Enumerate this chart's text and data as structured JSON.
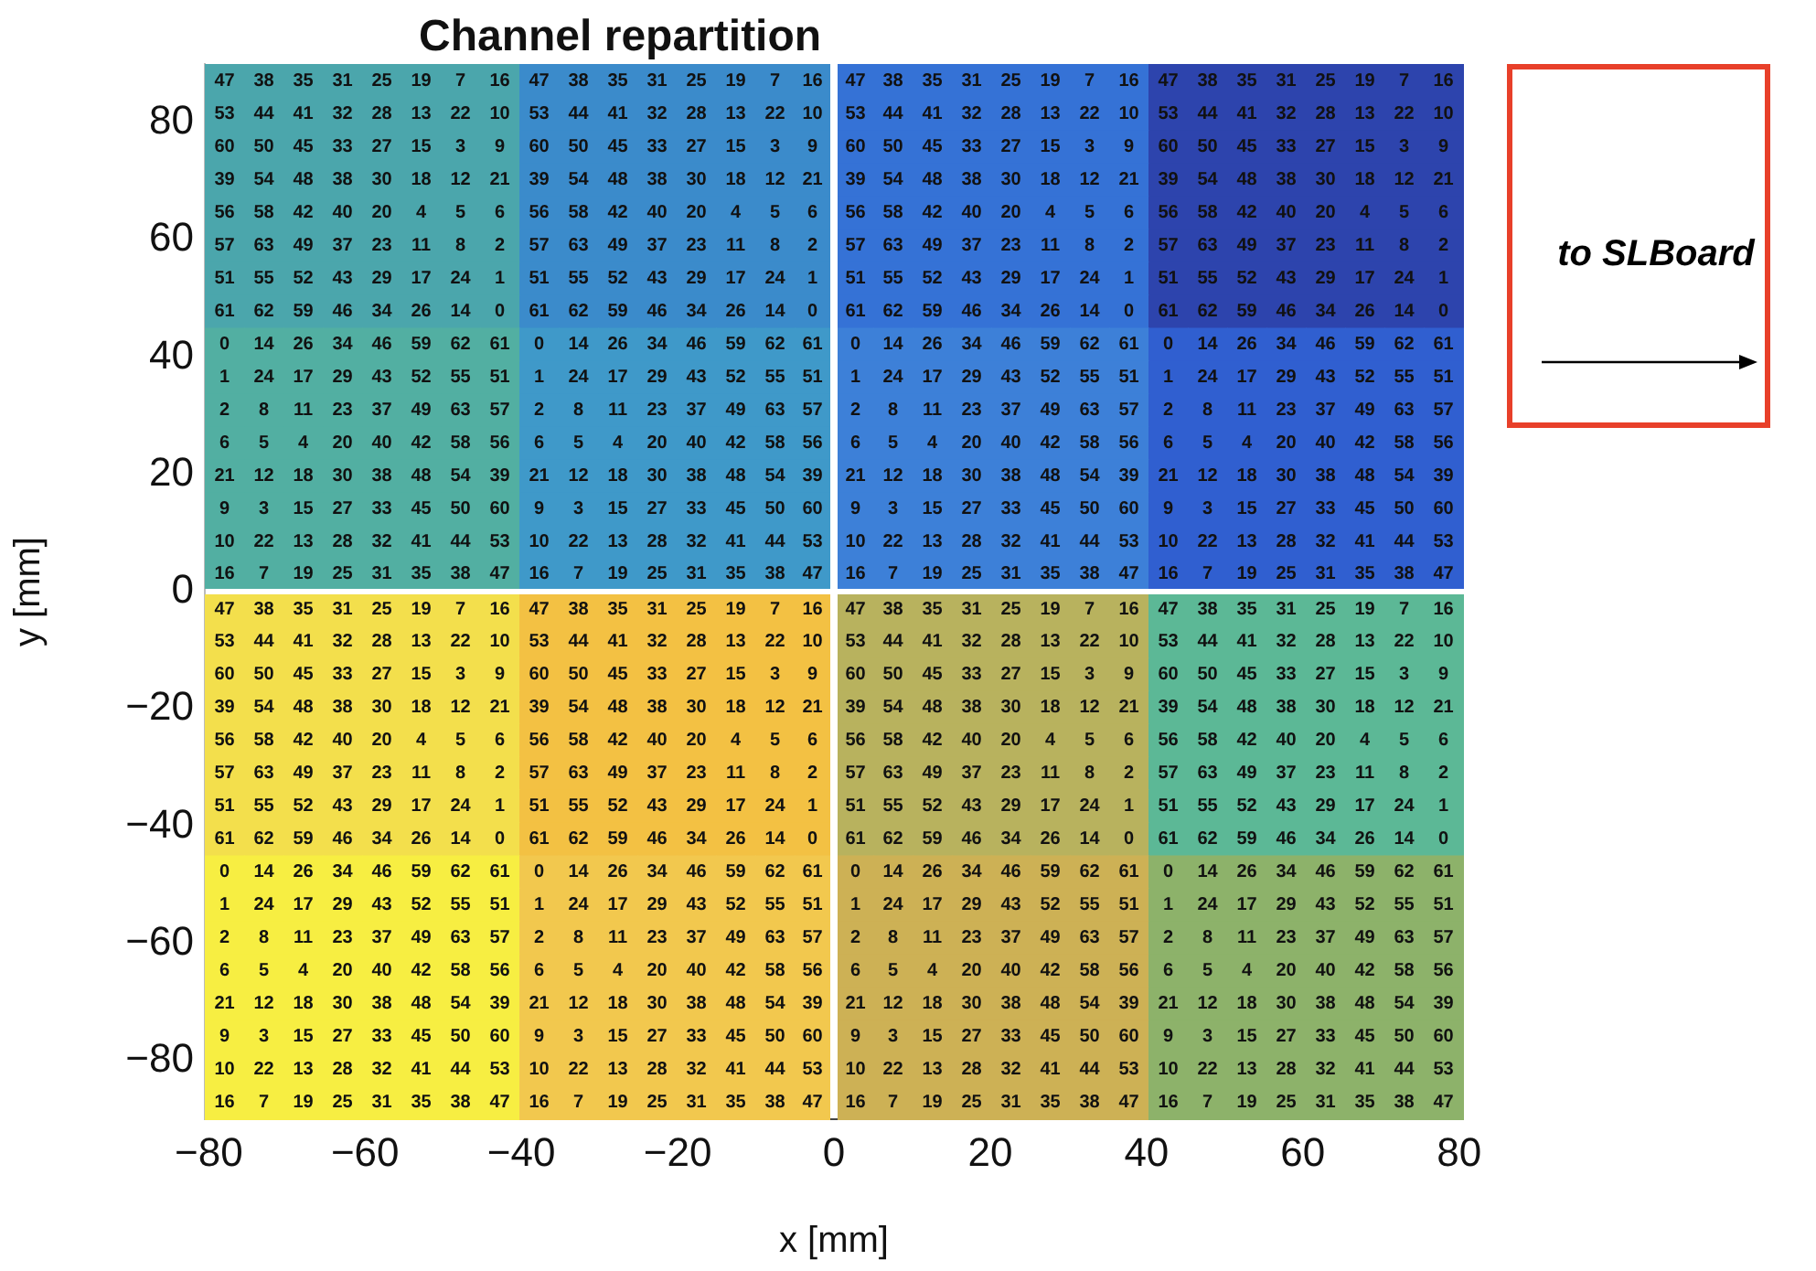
{
  "chart_data": {
    "type": "heatmap",
    "title": "Channel repartition",
    "xlabel": "x [mm]",
    "ylabel": "y [mm]",
    "annotations": [
      "to SLBoard"
    ],
    "xlim": [
      -80.5,
      80.5
    ],
    "ylim": [
      -90,
      90
    ],
    "xticks": [
      {
        "value": -80,
        "label": "−80"
      },
      {
        "value": -60,
        "label": "−60"
      },
      {
        "value": -40,
        "label": "−40"
      },
      {
        "value": -20,
        "label": "−20"
      },
      0,
      20,
      40,
      60,
      80
    ],
    "yticks": [
      {
        "value": -80,
        "label": "−80"
      },
      {
        "value": -60,
        "label": "−60"
      },
      {
        "value": -40,
        "label": "−40"
      },
      {
        "value": -20,
        "label": "−20"
      },
      0,
      20,
      40,
      60,
      80
    ],
    "colors": [
      [
        "#4ba6ac",
        "#3b8bcb",
        "#3572d6",
        "#2d44ad"
      ],
      [
        "#52afa2",
        "#3f99c9",
        "#3d80d8",
        "#305fd0"
      ],
      [
        "#f3df4c",
        "#f3c143",
        "#b8b25e",
        "#5cb896"
      ],
      [
        "#f7ee42",
        "#f2c84e",
        "#cdb155",
        "#8db26a"
      ]
    ],
    "data_labels": true,
    "cells": [
      [
        47,
        38,
        35,
        31,
        25,
        19,
        7,
        16,
        47,
        38,
        35,
        31,
        25,
        19,
        7,
        16,
        47,
        38,
        35,
        31,
        25,
        19,
        7,
        16,
        47,
        38,
        35,
        31,
        25,
        19,
        7,
        16
      ],
      [
        53,
        44,
        41,
        32,
        28,
        13,
        22,
        10,
        53,
        44,
        41,
        32,
        28,
        13,
        22,
        10,
        53,
        44,
        41,
        32,
        28,
        13,
        22,
        10,
        53,
        44,
        41,
        32,
        28,
        13,
        22,
        10
      ],
      [
        60,
        50,
        45,
        33,
        27,
        15,
        3,
        9,
        60,
        50,
        45,
        33,
        27,
        15,
        3,
        9,
        60,
        50,
        45,
        33,
        27,
        15,
        3,
        9,
        60,
        50,
        45,
        33,
        27,
        15,
        3,
        9
      ],
      [
        39,
        54,
        48,
        38,
        30,
        18,
        12,
        21,
        39,
        54,
        48,
        38,
        30,
        18,
        12,
        21,
        39,
        54,
        48,
        38,
        30,
        18,
        12,
        21,
        39,
        54,
        48,
        38,
        30,
        18,
        12,
        21
      ],
      [
        56,
        58,
        42,
        40,
        20,
        4,
        5,
        6,
        56,
        58,
        42,
        40,
        20,
        4,
        5,
        6,
        56,
        58,
        42,
        40,
        20,
        4,
        5,
        6,
        56,
        58,
        42,
        40,
        20,
        4,
        5,
        6
      ],
      [
        57,
        63,
        49,
        37,
        23,
        11,
        8,
        2,
        57,
        63,
        49,
        37,
        23,
        11,
        8,
        2,
        57,
        63,
        49,
        37,
        23,
        11,
        8,
        2,
        57,
        63,
        49,
        37,
        23,
        11,
        8,
        2
      ],
      [
        51,
        55,
        52,
        43,
        29,
        17,
        24,
        1,
        51,
        55,
        52,
        43,
        29,
        17,
        24,
        1,
        51,
        55,
        52,
        43,
        29,
        17,
        24,
        1,
        51,
        55,
        52,
        43,
        29,
        17,
        24,
        1
      ],
      [
        61,
        62,
        59,
        46,
        34,
        26,
        14,
        0,
        61,
        62,
        59,
        46,
        34,
        26,
        14,
        0,
        61,
        62,
        59,
        46,
        34,
        26,
        14,
        0,
        61,
        62,
        59,
        46,
        34,
        26,
        14,
        0
      ],
      [
        0,
        14,
        26,
        34,
        46,
        59,
        62,
        61,
        0,
        14,
        26,
        34,
        46,
        59,
        62,
        61,
        0,
        14,
        26,
        34,
        46,
        59,
        62,
        61,
        0,
        14,
        26,
        34,
        46,
        59,
        62,
        61
      ],
      [
        1,
        24,
        17,
        29,
        43,
        52,
        55,
        51,
        1,
        24,
        17,
        29,
        43,
        52,
        55,
        51,
        1,
        24,
        17,
        29,
        43,
        52,
        55,
        51,
        1,
        24,
        17,
        29,
        43,
        52,
        55,
        51
      ],
      [
        2,
        8,
        11,
        23,
        37,
        49,
        63,
        57,
        2,
        8,
        11,
        23,
        37,
        49,
        63,
        57,
        2,
        8,
        11,
        23,
        37,
        49,
        63,
        57,
        2,
        8,
        11,
        23,
        37,
        49,
        63,
        57
      ],
      [
        6,
        5,
        4,
        20,
        40,
        42,
        58,
        56,
        6,
        5,
        4,
        20,
        40,
        42,
        58,
        56,
        6,
        5,
        4,
        20,
        40,
        42,
        58,
        56,
        6,
        5,
        4,
        20,
        40,
        42,
        58,
        56
      ],
      [
        21,
        12,
        18,
        30,
        38,
        48,
        54,
        39,
        21,
        12,
        18,
        30,
        38,
        48,
        54,
        39,
        21,
        12,
        18,
        30,
        38,
        48,
        54,
        39,
        21,
        12,
        18,
        30,
        38,
        48,
        54,
        39
      ],
      [
        9,
        3,
        15,
        27,
        33,
        45,
        50,
        60,
        9,
        3,
        15,
        27,
        33,
        45,
        50,
        60,
        9,
        3,
        15,
        27,
        33,
        45,
        50,
        60,
        9,
        3,
        15,
        27,
        33,
        45,
        50,
        60
      ],
      [
        10,
        22,
        13,
        28,
        32,
        41,
        44,
        53,
        10,
        22,
        13,
        28,
        32,
        41,
        44,
        53,
        10,
        22,
        13,
        28,
        32,
        41,
        44,
        53,
        10,
        22,
        13,
        28,
        32,
        41,
        44,
        53
      ],
      [
        16,
        7,
        19,
        25,
        31,
        35,
        38,
        47,
        16,
        7,
        19,
        25,
        31,
        35,
        38,
        47,
        16,
        7,
        19,
        25,
        31,
        35,
        38,
        47,
        16,
        7,
        19,
        25,
        31,
        35,
        38,
        47
      ],
      [
        47,
        38,
        35,
        31,
        25,
        19,
        7,
        16,
        47,
        38,
        35,
        31,
        25,
        19,
        7,
        16,
        47,
        38,
        35,
        31,
        25,
        19,
        7,
        16,
        47,
        38,
        35,
        31,
        25,
        19,
        7,
        16
      ],
      [
        53,
        44,
        41,
        32,
        28,
        13,
        22,
        10,
        53,
        44,
        41,
        32,
        28,
        13,
        22,
        10,
        53,
        44,
        41,
        32,
        28,
        13,
        22,
        10,
        53,
        44,
        41,
        32,
        28,
        13,
        22,
        10
      ],
      [
        60,
        50,
        45,
        33,
        27,
        15,
        3,
        9,
        60,
        50,
        45,
        33,
        27,
        15,
        3,
        9,
        60,
        50,
        45,
        33,
        27,
        15,
        3,
        9,
        60,
        50,
        45,
        33,
        27,
        15,
        3,
        9
      ],
      [
        39,
        54,
        48,
        38,
        30,
        18,
        12,
        21,
        39,
        54,
        48,
        38,
        30,
        18,
        12,
        21,
        39,
        54,
        48,
        38,
        30,
        18,
        12,
        21,
        39,
        54,
        48,
        38,
        30,
        18,
        12,
        21
      ],
      [
        56,
        58,
        42,
        40,
        20,
        4,
        5,
        6,
        56,
        58,
        42,
        40,
        20,
        4,
        5,
        6,
        56,
        58,
        42,
        40,
        20,
        4,
        5,
        6,
        56,
        58,
        42,
        40,
        20,
        4,
        5,
        6
      ],
      [
        57,
        63,
        49,
        37,
        23,
        11,
        8,
        2,
        57,
        63,
        49,
        37,
        23,
        11,
        8,
        2,
        57,
        63,
        49,
        37,
        23,
        11,
        8,
        2,
        57,
        63,
        49,
        37,
        23,
        11,
        8,
        2
      ],
      [
        51,
        55,
        52,
        43,
        29,
        17,
        24,
        1,
        51,
        55,
        52,
        43,
        29,
        17,
        24,
        1,
        51,
        55,
        52,
        43,
        29,
        17,
        24,
        1,
        51,
        55,
        52,
        43,
        29,
        17,
        24,
        1
      ],
      [
        61,
        62,
        59,
        46,
        34,
        26,
        14,
        0,
        61,
        62,
        59,
        46,
        34,
        26,
        14,
        0,
        61,
        62,
        59,
        46,
        34,
        26,
        14,
        0,
        61,
        62,
        59,
        46,
        34,
        26,
        14,
        0
      ],
      [
        0,
        14,
        26,
        34,
        46,
        59,
        62,
        61,
        0,
        14,
        26,
        34,
        46,
        59,
        62,
        61,
        0,
        14,
        26,
        34,
        46,
        59,
        62,
        61,
        0,
        14,
        26,
        34,
        46,
        59,
        62,
        61
      ],
      [
        1,
        24,
        17,
        29,
        43,
        52,
        55,
        51,
        1,
        24,
        17,
        29,
        43,
        52,
        55,
        51,
        1,
        24,
        17,
        29,
        43,
        52,
        55,
        51,
        1,
        24,
        17,
        29,
        43,
        52,
        55,
        51
      ],
      [
        2,
        8,
        11,
        23,
        37,
        49,
        63,
        57,
        2,
        8,
        11,
        23,
        37,
        49,
        63,
        57,
        2,
        8,
        11,
        23,
        37,
        49,
        63,
        57,
        2,
        8,
        11,
        23,
        37,
        49,
        63,
        57
      ],
      [
        6,
        5,
        4,
        20,
        40,
        42,
        58,
        56,
        6,
        5,
        4,
        20,
        40,
        42,
        58,
        56,
        6,
        5,
        4,
        20,
        40,
        42,
        58,
        56,
        6,
        5,
        4,
        20,
        40,
        42,
        58,
        56
      ],
      [
        21,
        12,
        18,
        30,
        38,
        48,
        54,
        39,
        21,
        12,
        18,
        30,
        38,
        48,
        54,
        39,
        21,
        12,
        18,
        30,
        38,
        48,
        54,
        39,
        21,
        12,
        18,
        30,
        38,
        48,
        54,
        39
      ],
      [
        9,
        3,
        15,
        27,
        33,
        45,
        50,
        60,
        9,
        3,
        15,
        27,
        33,
        45,
        50,
        60,
        9,
        3,
        15,
        27,
        33,
        45,
        50,
        60,
        9,
        3,
        15,
        27,
        33,
        45,
        50,
        60
      ],
      [
        10,
        22,
        13,
        28,
        32,
        41,
        44,
        53,
        10,
        22,
        13,
        28,
        32,
        41,
        44,
        53,
        10,
        22,
        13,
        28,
        32,
        41,
        44,
        53,
        10,
        22,
        13,
        28,
        32,
        41,
        44,
        53
      ],
      [
        16,
        7,
        19,
        25,
        31,
        35,
        38,
        47,
        16,
        7,
        19,
        25,
        31,
        35,
        38,
        47,
        16,
        7,
        19,
        25,
        31,
        35,
        38,
        47,
        16,
        7,
        19,
        25,
        31,
        35,
        38,
        47
      ]
    ]
  }
}
